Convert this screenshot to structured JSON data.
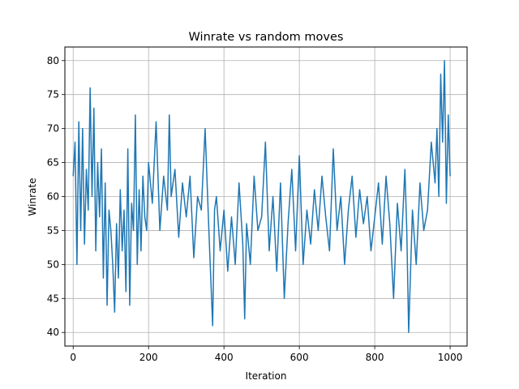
{
  "chart_data": {
    "type": "line",
    "title": "Winrate vs random moves",
    "xlabel": "Iteration",
    "ylabel": "Winrate",
    "xlim": [
      -22,
      1045
    ],
    "ylim": [
      38,
      82
    ],
    "xticks": [
      0,
      200,
      400,
      600,
      800,
      1000
    ],
    "yticks": [
      40,
      45,
      50,
      55,
      60,
      65,
      70,
      75,
      80
    ],
    "grid": true,
    "line_color": "#1f77b4",
    "series": [
      {
        "x": [
          0,
          5,
          10,
          15,
          20,
          25,
          30,
          35,
          40,
          45,
          50,
          55,
          60,
          65,
          70,
          75,
          80,
          85,
          90,
          95,
          100,
          105,
          110,
          115,
          120,
          125,
          130,
          135,
          140,
          145,
          150,
          155,
          160,
          165,
          170,
          175,
          180,
          185,
          190,
          195,
          200,
          210,
          220,
          230,
          240,
          250,
          255,
          260,
          270,
          280,
          290,
          300,
          310,
          320,
          330,
          340,
          350,
          360,
          370,
          375,
          380,
          390,
          400,
          410,
          420,
          430,
          440,
          450,
          455,
          460,
          470,
          480,
          490,
          500,
          510,
          520,
          530,
          540,
          550,
          560,
          570,
          580,
          590,
          600,
          610,
          620,
          630,
          640,
          650,
          660,
          670,
          680,
          690,
          700,
          710,
          720,
          730,
          740,
          750,
          760,
          770,
          780,
          790,
          800,
          810,
          820,
          830,
          840,
          850,
          860,
          870,
          880,
          885,
          890,
          900,
          910,
          920,
          930,
          940,
          950,
          960,
          965,
          970,
          975,
          980,
          985,
          990,
          995,
          1000
        ],
        "values": [
          63,
          68,
          50,
          71,
          55,
          70,
          53,
          64,
          58,
          76,
          60,
          73,
          52,
          65,
          57,
          67,
          48,
          62,
          44,
          58,
          55,
          50,
          43,
          56,
          48,
          61,
          52,
          58,
          46,
          67,
          44,
          59,
          55,
          72,
          50,
          61,
          52,
          63,
          57,
          55,
          65,
          59,
          71,
          55,
          63,
          58,
          72,
          60,
          64,
          54,
          62,
          57,
          63,
          51,
          60,
          58,
          70,
          55,
          41,
          58,
          60,
          52,
          58,
          49,
          57,
          50,
          62,
          53,
          42,
          56,
          50,
          63,
          55,
          57,
          68,
          52,
          60,
          49,
          62,
          45,
          56,
          64,
          52,
          66,
          50,
          58,
          53,
          61,
          55,
          63,
          57,
          52,
          67,
          55,
          60,
          50,
          58,
          63,
          54,
          61,
          56,
          60,
          52,
          57,
          62,
          53,
          63,
          56,
          45,
          59,
          52,
          64,
          55,
          40,
          58,
          50,
          62,
          55,
          58,
          68,
          62,
          70,
          60,
          78,
          68,
          80,
          59,
          72,
          63
        ]
      }
    ]
  }
}
